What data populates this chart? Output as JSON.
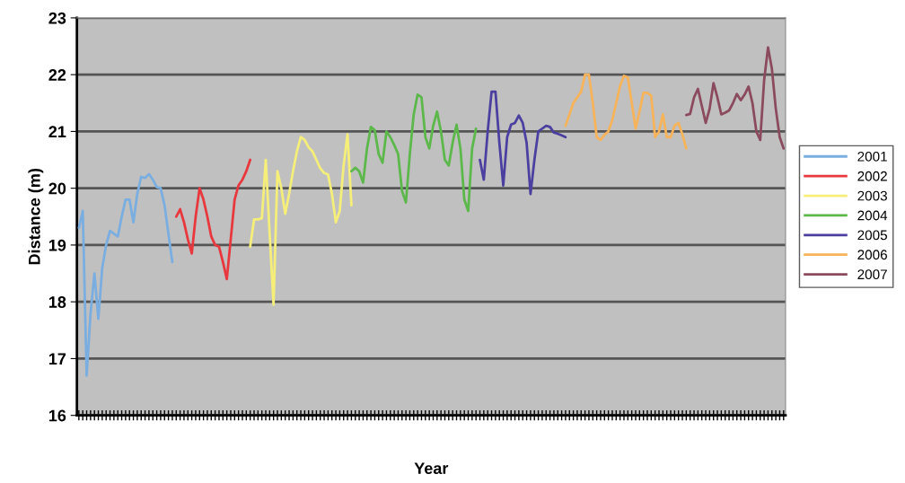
{
  "chart_data": {
    "type": "line",
    "xlabel": "Year",
    "ylabel": "Distance (m)",
    "categories": [
      null,
      null,
      null,
      null,
      null,
      null,
      null,
      null,
      null,
      null,
      null,
      null,
      null,
      null,
      null,
      null,
      null,
      null,
      null,
      null,
      null,
      null,
      null,
      null,
      null,
      null,
      null,
      null,
      null,
      null,
      null,
      null,
      null,
      null,
      null,
      null,
      null,
      null,
      null,
      null,
      null,
      null,
      null,
      null,
      null,
      null,
      null,
      null,
      null,
      null,
      null,
      null,
      null,
      null,
      null,
      null,
      null,
      null,
      null,
      null,
      null,
      null,
      null,
      null,
      null,
      null,
      null,
      null,
      null,
      null,
      null,
      null,
      null,
      null,
      null,
      null,
      null,
      null,
      null,
      null,
      null,
      null,
      null,
      null,
      null,
      null,
      null,
      null,
      null,
      null,
      null,
      null,
      null,
      null,
      null,
      null,
      null,
      null,
      null,
      null,
      null,
      null,
      null,
      null,
      null,
      null,
      null,
      null,
      null,
      null,
      null,
      null,
      null,
      null,
      null,
      null,
      null,
      null,
      null,
      null,
      null,
      null,
      null,
      null,
      null,
      null,
      null,
      null,
      null,
      null,
      null,
      null,
      null,
      null,
      null,
      null,
      null,
      null,
      null,
      null,
      null,
      null,
      null,
      null,
      null,
      null,
      null,
      null,
      null,
      null,
      null,
      null,
      null,
      null,
      null,
      null,
      null,
      null,
      null,
      null,
      null,
      null,
      null,
      null,
      null,
      null,
      null,
      null,
      null,
      null,
      null,
      null,
      null,
      null,
      null,
      null,
      null,
      null,
      null,
      null,
      null,
      null
    ],
    "series": [
      {
        "name": "2001",
        "color": "#7aaee0",
        "values": [
          19.3,
          19.6,
          16.7,
          17.8,
          18.5,
          17.7,
          18.6,
          19.0,
          19.25,
          19.2,
          19.15,
          19.5,
          19.8,
          19.8,
          19.4,
          19.9,
          20.2,
          20.18,
          20.25,
          20.15,
          20.02,
          20.0,
          19.7,
          19.2,
          18.7,
          null,
          null,
          null,
          null,
          null,
          null,
          null,
          null,
          null,
          null,
          null,
          null,
          null,
          null,
          null,
          null,
          null,
          null,
          null,
          null,
          null,
          null,
          null,
          null,
          null,
          null,
          null,
          null,
          null,
          null,
          null,
          null,
          null,
          null,
          null,
          null,
          null,
          null,
          null,
          null,
          null,
          null,
          null,
          null,
          null,
          null,
          null,
          null,
          null,
          null,
          null,
          null,
          null,
          null,
          null,
          null,
          null,
          null,
          null,
          null,
          null,
          null,
          null,
          null,
          null,
          null,
          null,
          null,
          null,
          null,
          null,
          null,
          null,
          null,
          null,
          null,
          null,
          null,
          null,
          null,
          null,
          null,
          null,
          null,
          null,
          null,
          null,
          null,
          null,
          null,
          null,
          null,
          null,
          null,
          null,
          null,
          null,
          null,
          null,
          null,
          null,
          null,
          null,
          null,
          null,
          null,
          null,
          null,
          null,
          null,
          null,
          null,
          null,
          null,
          null,
          null,
          null,
          null,
          null,
          null,
          null,
          null,
          null,
          null,
          null,
          null,
          null,
          null,
          null,
          null,
          null,
          null,
          null,
          null,
          null,
          null,
          null,
          null,
          null,
          null,
          null,
          null,
          null,
          null,
          null,
          null,
          null,
          null,
          null,
          null,
          null,
          null,
          null,
          null,
          null,
          null,
          null
        ]
      },
      {
        "name": "2002",
        "color": "#e8383d",
        "values": [
          null,
          null,
          null,
          null,
          null,
          null,
          null,
          null,
          null,
          null,
          null,
          null,
          null,
          null,
          null,
          null,
          null,
          null,
          null,
          null,
          null,
          null,
          null,
          null,
          null,
          19.5,
          19.63,
          19.4,
          19.1,
          18.85,
          19.5,
          20.0,
          19.8,
          19.5,
          19.15,
          19.0,
          18.97,
          18.7,
          18.4,
          19.1,
          19.8,
          20.05,
          20.15,
          20.3,
          20.5,
          null,
          null,
          null,
          null,
          null,
          null,
          null,
          null,
          null,
          null,
          null,
          null,
          null,
          null,
          null,
          null,
          null,
          null,
          null,
          null,
          null,
          null,
          null,
          null,
          null,
          null,
          null,
          null,
          null,
          null,
          null,
          null,
          null,
          null,
          null,
          null,
          null,
          null,
          null,
          null,
          null,
          null,
          null,
          null,
          null,
          null,
          null,
          null,
          null,
          null,
          null,
          null,
          null,
          null,
          null,
          null,
          null,
          null,
          null,
          null,
          null,
          null,
          null,
          null,
          null,
          null,
          null,
          null,
          null,
          null,
          null,
          null,
          null,
          null,
          null,
          null,
          null,
          null,
          null,
          null,
          null,
          null,
          null,
          null,
          null,
          null,
          null,
          null,
          null,
          null,
          null,
          null,
          null,
          null,
          null,
          null,
          null,
          null,
          null,
          null,
          null,
          null,
          null,
          null,
          null,
          null,
          null,
          null,
          null,
          null,
          null,
          null,
          null,
          null,
          null,
          null,
          null,
          null,
          null,
          null,
          null,
          null,
          null,
          null,
          null,
          null,
          null,
          null,
          null,
          null,
          null,
          null,
          null,
          null,
          null,
          null,
          null
        ]
      },
      {
        "name": "2003",
        "color": "#f5ef7a",
        "values": [
          null,
          null,
          null,
          null,
          null,
          null,
          null,
          null,
          null,
          null,
          null,
          null,
          null,
          null,
          null,
          null,
          null,
          null,
          null,
          null,
          null,
          null,
          null,
          null,
          null,
          null,
          null,
          null,
          null,
          null,
          null,
          null,
          null,
          null,
          null,
          null,
          null,
          null,
          null,
          null,
          null,
          null,
          null,
          null,
          18.97,
          19.45,
          19.45,
          19.47,
          20.5,
          19.2,
          17.95,
          20.3,
          20.0,
          19.55,
          19.9,
          20.3,
          20.65,
          20.9,
          20.85,
          20.72,
          20.65,
          20.5,
          20.35,
          20.27,
          20.24,
          19.9,
          19.4,
          19.6,
          20.4,
          20.95,
          19.7,
          null,
          null,
          null,
          null,
          null,
          null,
          null,
          null,
          null,
          null,
          null,
          null,
          null,
          null,
          null,
          null,
          null,
          null,
          null,
          null,
          null,
          null,
          null,
          null,
          null,
          null,
          null,
          null,
          null,
          null,
          null,
          null,
          null,
          null,
          null,
          null,
          null,
          null,
          null,
          null,
          null,
          null,
          null,
          null,
          null,
          null,
          null,
          null,
          null,
          null,
          null,
          null,
          null,
          null,
          null,
          null,
          null,
          null,
          null,
          null,
          null,
          null,
          null,
          null,
          null,
          null,
          null,
          null,
          null,
          null,
          null,
          null,
          null,
          null,
          null,
          null,
          null,
          null,
          null,
          null,
          null,
          null,
          null,
          null,
          null,
          null,
          null,
          null,
          null,
          null,
          null,
          null,
          null,
          null,
          null,
          null,
          null,
          null,
          null,
          null,
          null,
          null,
          null,
          null,
          null,
          null,
          null,
          null,
          null,
          null,
          null
        ]
      },
      {
        "name": "2004",
        "color": "#5cb84a",
        "values": [
          null,
          null,
          null,
          null,
          null,
          null,
          null,
          null,
          null,
          null,
          null,
          null,
          null,
          null,
          null,
          null,
          null,
          null,
          null,
          null,
          null,
          null,
          null,
          null,
          null,
          null,
          null,
          null,
          null,
          null,
          null,
          null,
          null,
          null,
          null,
          null,
          null,
          null,
          null,
          null,
          null,
          null,
          null,
          null,
          null,
          null,
          null,
          null,
          null,
          null,
          null,
          null,
          null,
          null,
          null,
          null,
          null,
          null,
          null,
          null,
          null,
          null,
          null,
          null,
          null,
          null,
          null,
          null,
          null,
          null,
          20.3,
          20.36,
          20.3,
          20.1,
          20.7,
          21.08,
          21.02,
          20.6,
          20.45,
          21.0,
          20.9,
          20.76,
          20.6,
          19.95,
          19.75,
          20.6,
          21.3,
          21.65,
          21.6,
          20.9,
          20.7,
          21.1,
          21.35,
          21.0,
          20.5,
          20.4,
          20.8,
          21.12,
          20.7,
          19.8,
          19.6,
          20.7,
          21.05,
          null,
          null,
          null,
          null,
          null,
          null,
          null,
          null,
          null,
          null,
          null,
          null,
          null,
          null,
          null,
          null,
          null,
          null,
          null,
          null,
          null,
          null,
          null,
          null,
          null,
          null,
          null,
          null,
          null,
          null,
          null,
          null,
          null,
          null,
          null,
          null,
          null,
          null,
          null,
          null,
          null,
          null,
          null,
          null,
          null,
          null,
          null,
          null,
          null,
          null,
          null,
          null,
          null,
          null,
          null,
          null,
          null,
          null,
          null,
          null,
          null,
          null,
          null,
          null,
          null,
          null,
          null,
          null,
          null,
          null,
          null,
          null,
          null,
          null,
          null,
          null,
          null,
          null,
          null
        ]
      },
      {
        "name": "2005",
        "color": "#4b3fa0",
        "values": [
          null,
          null,
          null,
          null,
          null,
          null,
          null,
          null,
          null,
          null,
          null,
          null,
          null,
          null,
          null,
          null,
          null,
          null,
          null,
          null,
          null,
          null,
          null,
          null,
          null,
          null,
          null,
          null,
          null,
          null,
          null,
          null,
          null,
          null,
          null,
          null,
          null,
          null,
          null,
          null,
          null,
          null,
          null,
          null,
          null,
          null,
          null,
          null,
          null,
          null,
          null,
          null,
          null,
          null,
          null,
          null,
          null,
          null,
          null,
          null,
          null,
          null,
          null,
          null,
          null,
          null,
          null,
          null,
          null,
          null,
          null,
          null,
          null,
          null,
          null,
          null,
          null,
          null,
          null,
          null,
          null,
          null,
          null,
          null,
          null,
          null,
          null,
          null,
          null,
          null,
          null,
          null,
          null,
          null,
          null,
          null,
          null,
          null,
          null,
          null,
          null,
          null,
          null,
          20.5,
          20.15,
          21.0,
          21.7,
          21.7,
          20.8,
          20.05,
          20.9,
          21.12,
          21.15,
          21.28,
          21.15,
          20.8,
          19.9,
          20.5,
          21.0,
          21.05,
          21.1,
          21.08,
          20.98,
          20.96,
          20.93,
          20.9,
          null,
          null,
          null,
          null,
          null,
          null,
          null,
          null,
          null,
          null,
          null,
          null,
          null,
          null,
          null,
          null,
          null,
          null,
          null,
          null,
          null,
          null,
          null,
          null,
          null,
          null,
          null,
          null,
          null,
          null,
          null,
          null,
          null,
          null,
          null,
          null,
          null,
          null,
          null,
          null,
          null,
          null,
          null,
          null,
          null,
          null,
          null,
          null,
          null,
          null,
          null,
          null,
          null,
          null,
          null,
          null
        ]
      },
      {
        "name": "2006",
        "color": "#f7b35a",
        "values": [
          null,
          null,
          null,
          null,
          null,
          null,
          null,
          null,
          null,
          null,
          null,
          null,
          null,
          null,
          null,
          null,
          null,
          null,
          null,
          null,
          null,
          null,
          null,
          null,
          null,
          null,
          null,
          null,
          null,
          null,
          null,
          null,
          null,
          null,
          null,
          null,
          null,
          null,
          null,
          null,
          null,
          null,
          null,
          null,
          null,
          null,
          null,
          null,
          null,
          null,
          null,
          null,
          null,
          null,
          null,
          null,
          null,
          null,
          null,
          null,
          null,
          null,
          null,
          null,
          null,
          null,
          null,
          null,
          null,
          null,
          null,
          null,
          null,
          null,
          null,
          null,
          null,
          null,
          null,
          null,
          null,
          null,
          null,
          null,
          null,
          null,
          null,
          null,
          null,
          null,
          null,
          null,
          null,
          null,
          null,
          null,
          null,
          null,
          null,
          null,
          null,
          null,
          null,
          null,
          null,
          null,
          null,
          null,
          null,
          null,
          null,
          null,
          null,
          null,
          null,
          null,
          null,
          null,
          null,
          null,
          null,
          null,
          null,
          null,
          null,
          21.1,
          21.3,
          21.5,
          21.6,
          21.7,
          22.0,
          22.0,
          21.5,
          20.9,
          20.85,
          20.94,
          21.0,
          21.2,
          21.5,
          21.8,
          21.98,
          21.95,
          21.5,
          21.05,
          21.35,
          21.68,
          21.68,
          21.63,
          20.9,
          21.0,
          21.3,
          20.9,
          20.9,
          21.1,
          21.15,
          20.95,
          20.7,
          null,
          null,
          null,
          null,
          null,
          null,
          null,
          null,
          null,
          null,
          null,
          null,
          null,
          null,
          null,
          null,
          null,
          null,
          null,
          null,
          null,
          null,
          null,
          null,
          null
        ]
      },
      {
        "name": "2007",
        "color": "#8b4a5e",
        "values": [
          null,
          null,
          null,
          null,
          null,
          null,
          null,
          null,
          null,
          null,
          null,
          null,
          null,
          null,
          null,
          null,
          null,
          null,
          null,
          null,
          null,
          null,
          null,
          null,
          null,
          null,
          null,
          null,
          null,
          null,
          null,
          null,
          null,
          null,
          null,
          null,
          null,
          null,
          null,
          null,
          null,
          null,
          null,
          null,
          null,
          null,
          null,
          null,
          null,
          null,
          null,
          null,
          null,
          null,
          null,
          null,
          null,
          null,
          null,
          null,
          null,
          null,
          null,
          null,
          null,
          null,
          null,
          null,
          null,
          null,
          null,
          null,
          null,
          null,
          null,
          null,
          null,
          null,
          null,
          null,
          null,
          null,
          null,
          null,
          null,
          null,
          null,
          null,
          null,
          null,
          null,
          null,
          null,
          null,
          null,
          null,
          null,
          null,
          null,
          null,
          null,
          null,
          null,
          null,
          null,
          null,
          null,
          null,
          null,
          null,
          null,
          null,
          null,
          null,
          null,
          null,
          null,
          null,
          null,
          null,
          null,
          null,
          null,
          null,
          null,
          null,
          null,
          null,
          null,
          null,
          null,
          null,
          null,
          null,
          null,
          null,
          null,
          null,
          null,
          null,
          null,
          null,
          null,
          null,
          null,
          null,
          null,
          null,
          null,
          null,
          null,
          null,
          null,
          null,
          null,
          null,
          21.29,
          21.31,
          21.6,
          21.75,
          21.45,
          21.15,
          21.4,
          21.85,
          21.6,
          21.3,
          21.33,
          21.37,
          21.5,
          21.66,
          21.55,
          21.65,
          21.79,
          21.5,
          21.0,
          20.85,
          21.9,
          22.48,
          22.1,
          21.4,
          20.9,
          20.7
        ]
      }
    ],
    "ylim": [
      16,
      23
    ],
    "yticks": [
      16,
      17,
      18,
      19,
      20,
      21,
      22,
      23
    ],
    "grid": "y",
    "legend": "right",
    "tick_labels": "y",
    "marker": "none",
    "line_style": "solid"
  }
}
